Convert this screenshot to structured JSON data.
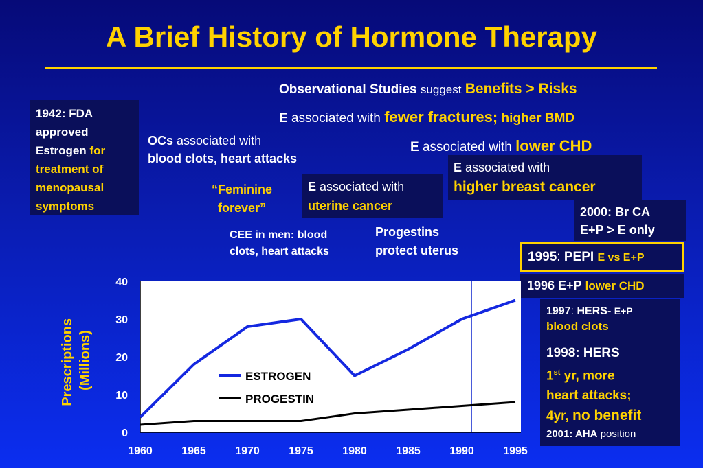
{
  "slide": {
    "title": "A Brief History of Hormone Therapy",
    "observational": {
      "lead": "Observational Studies",
      "mid": "suggest",
      "tail": "Benefits > Risks"
    },
    "fractures": {
      "e": "E",
      "mid": "associated with",
      "tail1": "fewer fractures;",
      "tail2": "higher BMD"
    },
    "chd": {
      "e": "E",
      "mid": "associated with",
      "tail": "lower CHD"
    },
    "breast": {
      "e": "E",
      "mid": "associated with",
      "tail": "higher breast cancer"
    },
    "fda": {
      "l1": "1942: FDA",
      "l2": "approved",
      "l3a": "Estrogen",
      "l3b": "for",
      "l4": "treatment of",
      "l5": "menopausal",
      "l6": "symptoms"
    },
    "ocs": {
      "lead": "OCs",
      "mid": "associated with",
      "l2": "blood clots, heart attacks"
    },
    "feminine": {
      "l1": "“Feminine",
      "l2": "forever”"
    },
    "uterine": {
      "e": "E",
      "mid": "associated with",
      "tail": "uterine cancer"
    },
    "cee": {
      "l1": "CEE in men: blood",
      "l2": "clots, heart attacks"
    },
    "progestins": {
      "l1": "Progestins",
      "l2": "protect uterus"
    },
    "br2000": {
      "l1": "2000: Br CA",
      "l2": "E+P > E only"
    },
    "pepi": {
      "year": "1995",
      "colon": ":",
      "name": "PEPI",
      "tail": "E vs E+P"
    },
    "ep1996": {
      "lead": "1996 E+P",
      "tail": "lower CHD"
    },
    "hers": {
      "y1997": "1997",
      "c1997": ":",
      "n1997": "HERS-",
      "t1997": "E+P",
      "l2": "blood clots",
      "y1998": "1998: HERS",
      "r1a": "1",
      "r1sup": "st",
      "r1b": "yr, more",
      "r2": "heart attacks;",
      "r3a": "4yr,",
      "r3b": "no benefit",
      "y2001": "2001: AHA",
      "t2001": "position"
    }
  },
  "colors": {
    "yellow": "#ffd200",
    "estrogen": "#1428e0",
    "progestin": "#000000",
    "panel": "#0a0f5a",
    "marker": "#1a2fd0"
  },
  "chart_data": {
    "type": "line",
    "ylabel": "Prescriptions (Millions)",
    "ylim": [
      0,
      40
    ],
    "xlim": [
      1960,
      1995
    ],
    "xticks": [
      1960,
      1965,
      1970,
      1975,
      1980,
      1985,
      1990,
      1995
    ],
    "yticks": [
      0,
      10,
      20,
      30,
      40
    ],
    "marker_x": 1990.9,
    "series": [
      {
        "name": "ESTROGEN",
        "x": [
          1960,
          1965,
          1970,
          1975,
          1980,
          1985,
          1990,
          1995
        ],
        "values": [
          4,
          18,
          28,
          30,
          15,
          22,
          30,
          35
        ]
      },
      {
        "name": "PROGESTIN",
        "x": [
          1960,
          1965,
          1970,
          1975,
          1980,
          1985,
          1990,
          1995
        ],
        "values": [
          2,
          3,
          3,
          3,
          5,
          6,
          7,
          8
        ]
      }
    ]
  }
}
